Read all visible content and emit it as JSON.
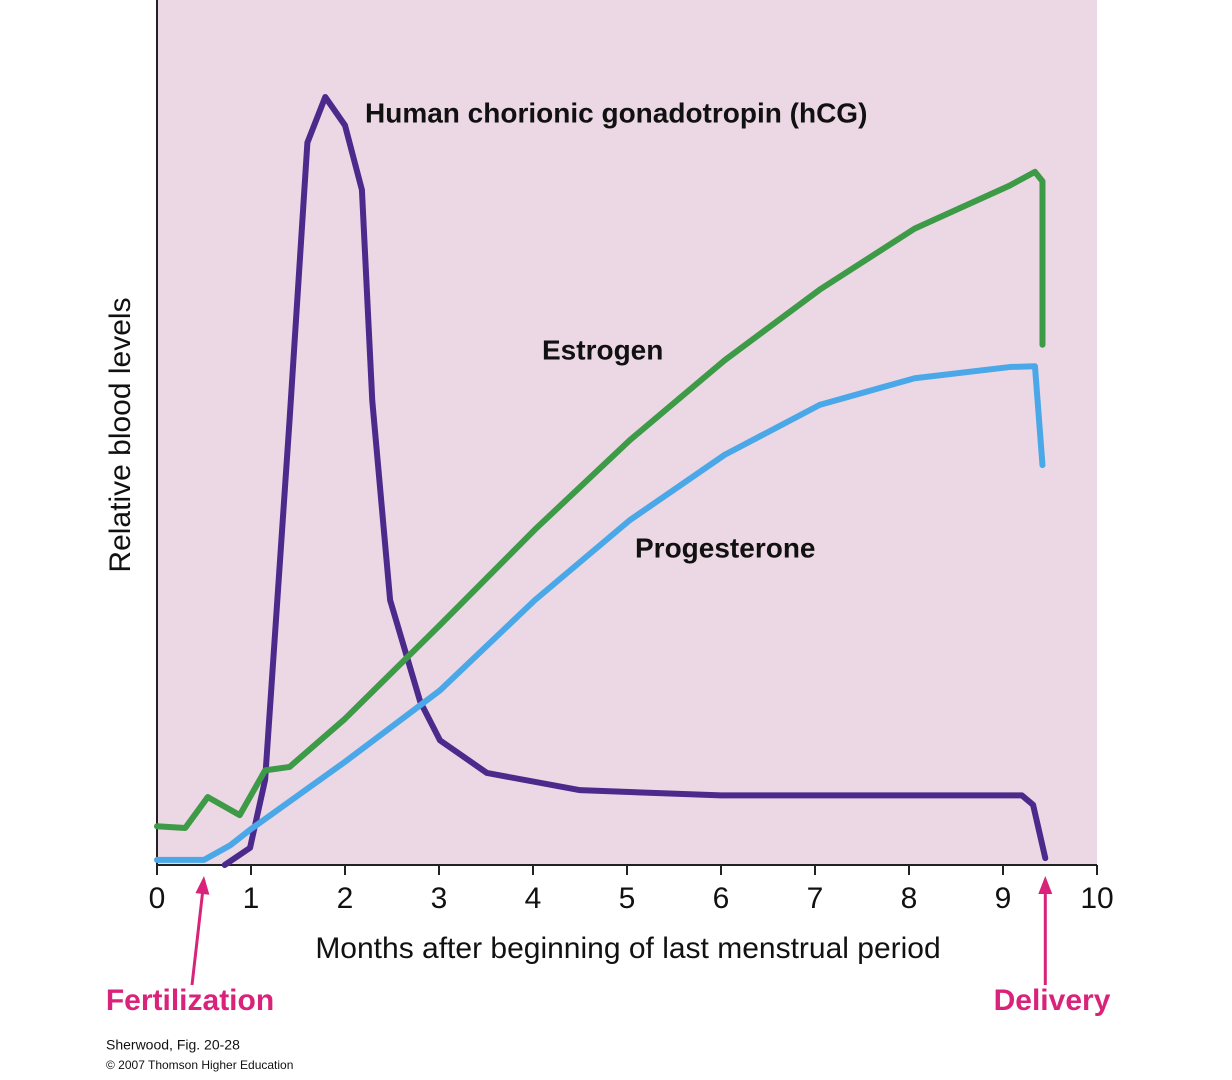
{
  "chart_data": {
    "type": "line",
    "x_label": "Months after beginning of last menstrual period",
    "y_label": "Relative blood levels",
    "xlim": [
      0,
      10
    ],
    "ylim": [
      0,
      100
    ],
    "xticks": [
      0,
      1,
      2,
      3,
      4,
      5,
      6,
      7,
      8,
      9,
      10
    ],
    "background": "#ecd8e4",
    "series": [
      {
        "name": "Human chorionic gonadotropin (hCG)",
        "color": "#4b2a8c",
        "x": [
          0.72,
          0.99,
          1.15,
          1.41,
          1.6,
          1.79,
          2.0,
          2.18,
          2.29,
          2.48,
          2.8,
          3.01,
          3.51,
          4.5,
          6.0,
          9.2,
          9.32,
          9.45
        ],
        "values": [
          0,
          2,
          9.9,
          51.7,
          84,
          89.3,
          86,
          78.5,
          54,
          30.8,
          19,
          14.5,
          10.7,
          8.7,
          8.1,
          8.1,
          7,
          0.8
        ]
      },
      {
        "name": "Estrogen",
        "color": "#3d9a47",
        "x": [
          0,
          0.3,
          0.54,
          0.88,
          1.15,
          1.41,
          2.0,
          3.01,
          4.02,
          5.03,
          6.04,
          7.05,
          8.06,
          9.07,
          9.34,
          9.42,
          9.42
        ],
        "values": [
          4.5,
          4.3,
          7.9,
          5.8,
          11,
          11.4,
          17,
          27.9,
          39,
          49.4,
          58.7,
          66.9,
          74,
          79,
          80.6,
          79.5,
          60.5
        ]
      },
      {
        "name": "Progesterone",
        "color": "#4aa8e8",
        "x": [
          0,
          0.5,
          0.78,
          0.99,
          2.0,
          3.01,
          4.02,
          5.03,
          6.04,
          7.05,
          8.06,
          9.07,
          9.34,
          9.42
        ],
        "values": [
          0.6,
          0.6,
          2.3,
          4.1,
          12,
          20.3,
          30.8,
          40.1,
          47.7,
          53.5,
          56.6,
          57.9,
          58,
          46.5
        ]
      }
    ],
    "annotations": [
      {
        "text": "Fertilization",
        "x": 0.5
      },
      {
        "text": "Delivery",
        "x": 9.45
      }
    ],
    "credits": [
      "Sherwood, Fig. 20-28",
      "© 2007 Thomson Higher Education"
    ]
  }
}
